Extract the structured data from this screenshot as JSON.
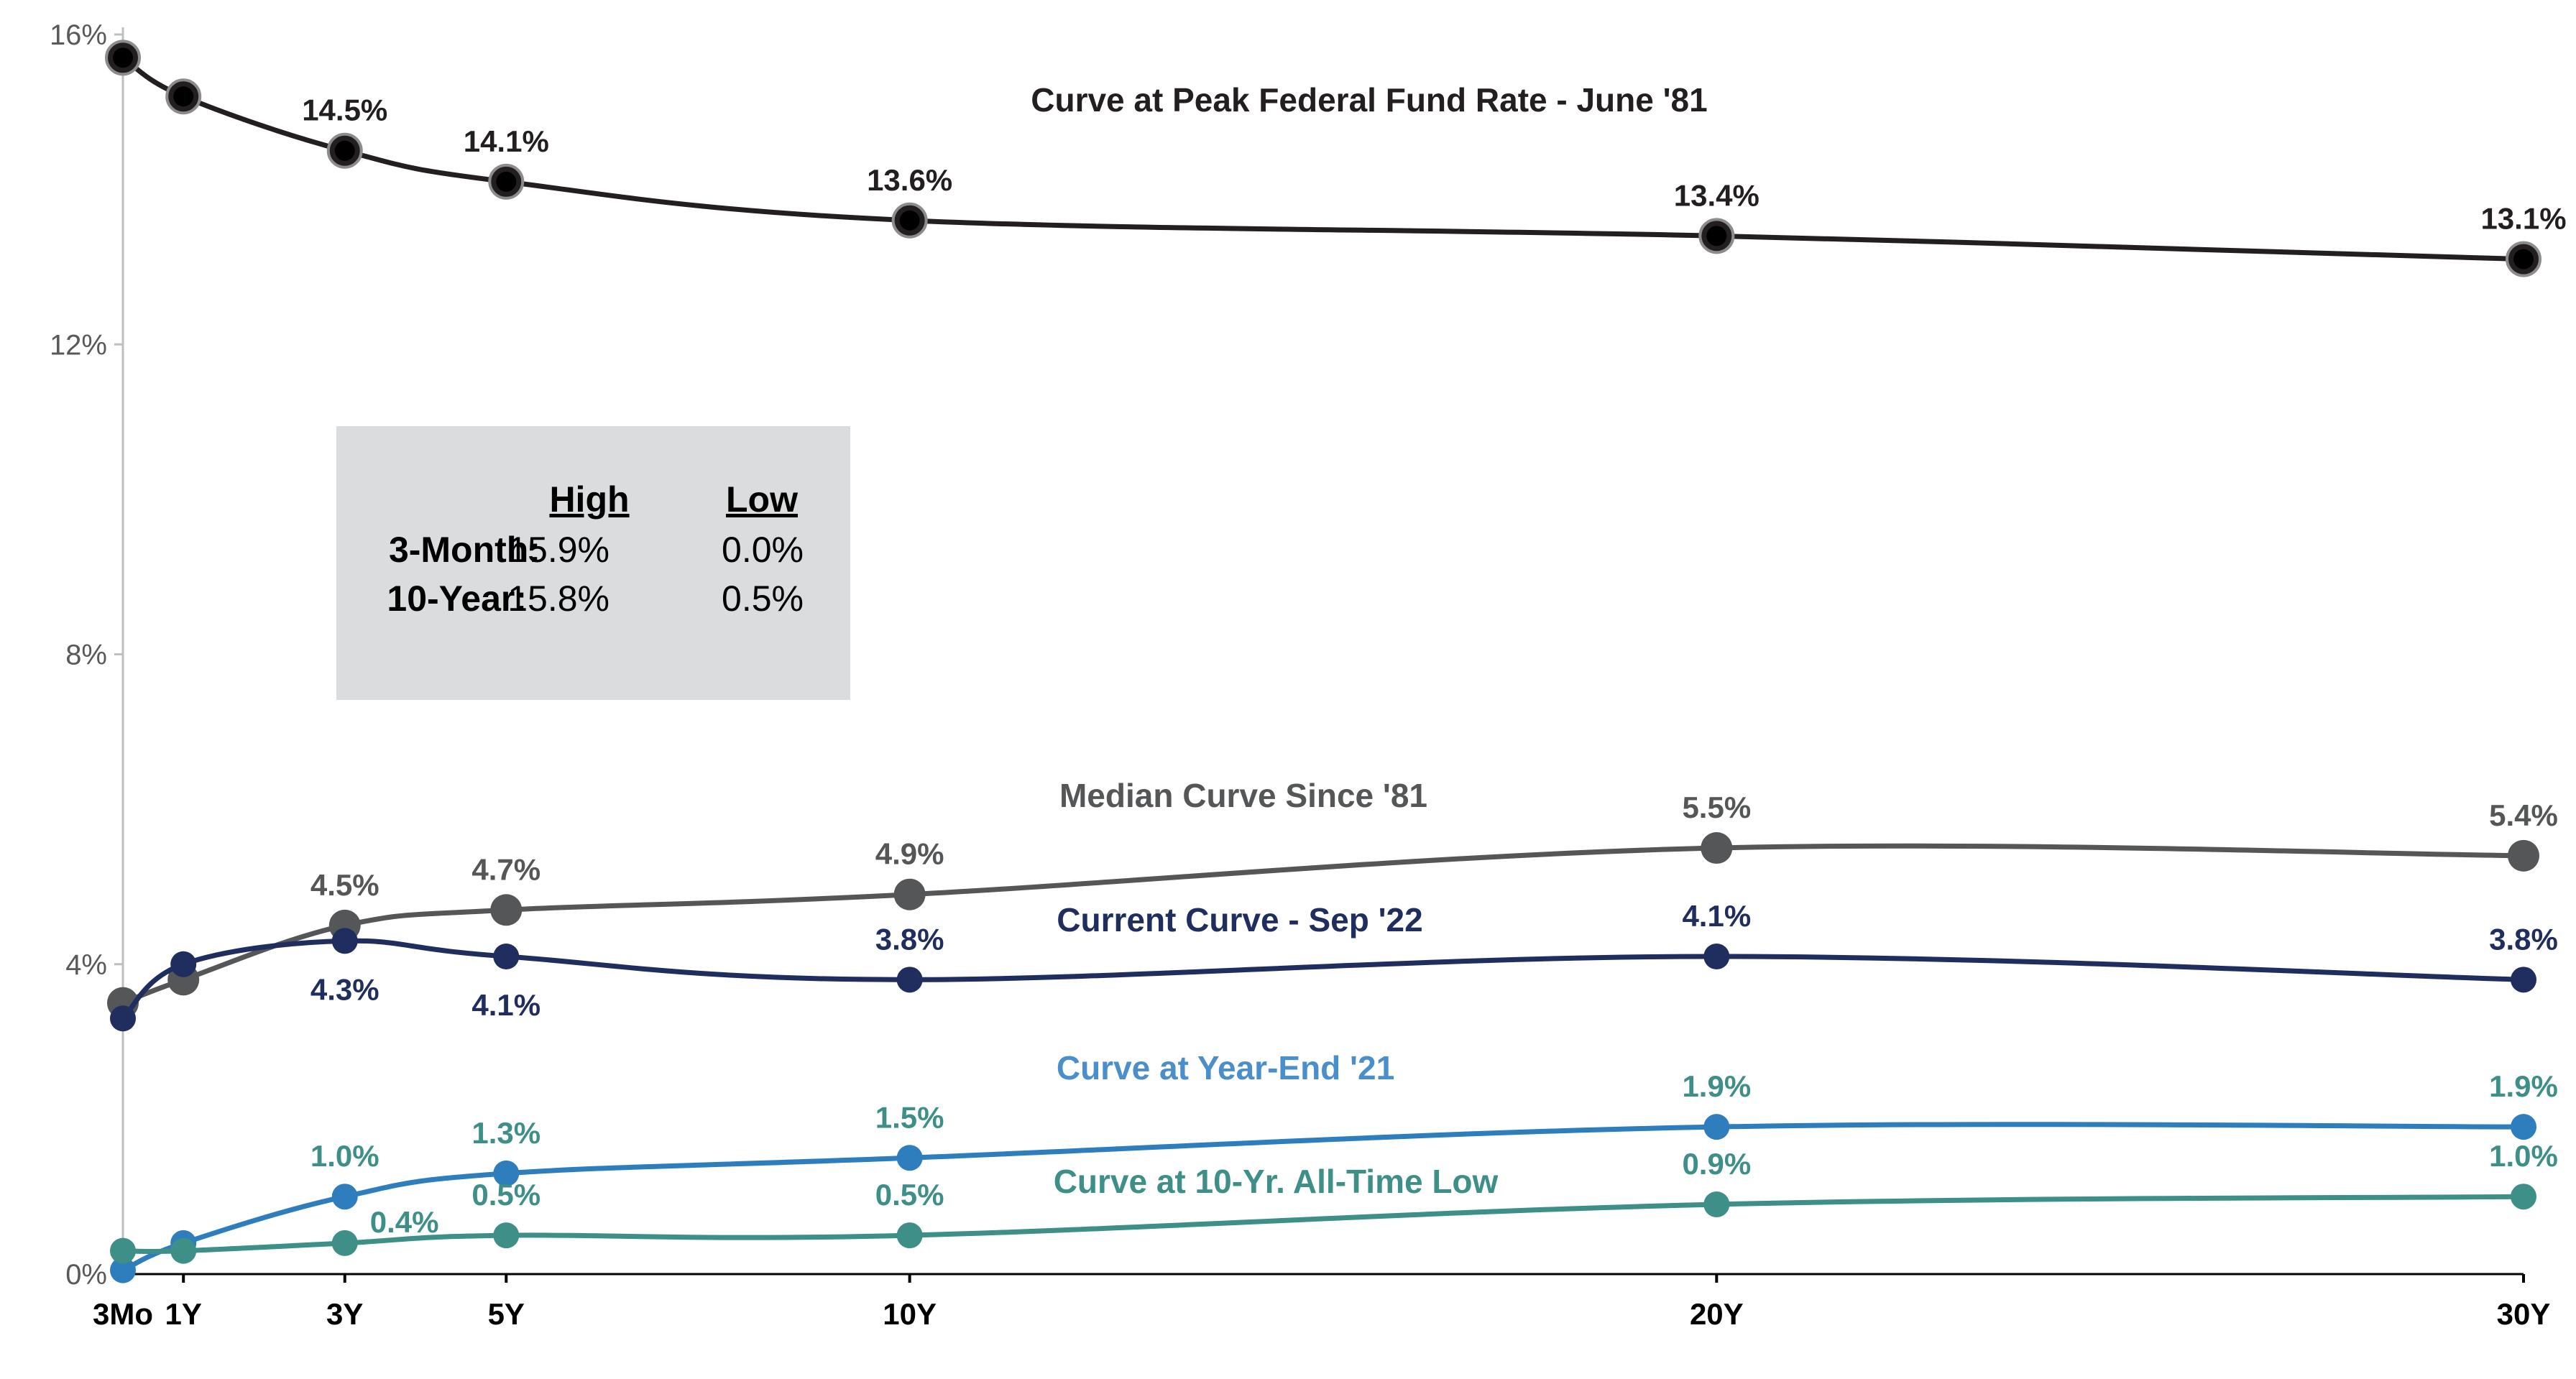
{
  "chart_data": {
    "type": "line",
    "categories": [
      "3Mo",
      "1Y",
      "3Y",
      "5Y",
      "10Y",
      "20Y",
      "30Y"
    ],
    "x": [
      0.25,
      1,
      3,
      5,
      10,
      20,
      30
    ],
    "yticks": [
      "0%",
      "4%",
      "8%",
      "12%",
      "16%"
    ],
    "ylim": [
      0,
      16
    ],
    "grid": false,
    "legend": "inline",
    "series": [
      {
        "name": "Curve at Peak Federal Fund Rate - June '81",
        "color": "#231f20",
        "values": [
          15.7,
          15.2,
          14.5,
          14.1,
          13.6,
          13.4,
          13.1
        ],
        "labels": [
          "",
          "",
          "14.5%",
          "14.1%",
          "13.6%",
          "13.4%",
          "13.1%"
        ],
        "label_pos": [
          "",
          "",
          "above",
          "above",
          "above",
          "above",
          "above"
        ]
      },
      {
        "name": "Median Curve Since '81",
        "color": "#555657",
        "values": [
          3.5,
          3.8,
          4.5,
          4.7,
          4.9,
          5.5,
          5.4
        ],
        "labels": [
          "",
          "",
          "4.5%",
          "4.7%",
          "4.9%",
          "5.5%",
          "5.4%"
        ],
        "label_pos": [
          "",
          "",
          "above",
          "above",
          "above",
          "above",
          "above"
        ]
      },
      {
        "name": "Current Curve - Sep '22",
        "color": "#1f2e5e",
        "values": [
          3.3,
          4.0,
          4.3,
          4.1,
          3.8,
          4.1,
          3.8
        ],
        "labels": [
          "",
          "",
          "4.3%",
          "4.1%",
          "3.8%",
          "4.1%",
          "3.8%"
        ],
        "label_pos": [
          "",
          "",
          "below",
          "below",
          "above",
          "above",
          "above"
        ]
      },
      {
        "name": "Curve at Year-End '21",
        "color": "#2e7ebd",
        "label_color": "#3d8f87",
        "values": [
          0.05,
          0.4,
          1.0,
          1.3,
          1.5,
          1.9,
          1.9
        ],
        "labels": [
          "",
          "",
          "1.0%",
          "1.3%",
          "1.5%",
          "1.9%",
          "1.9%"
        ],
        "label_pos": [
          "",
          "",
          "above",
          "above",
          "above",
          "above",
          "above"
        ]
      },
      {
        "name": "Curve at 10-Yr. All-Time Low",
        "color": "#3d8f87",
        "values": [
          0.3,
          0.3,
          0.4,
          0.5,
          0.5,
          0.9,
          1.0
        ],
        "labels": [
          "",
          "",
          "0.4%",
          "0.5%",
          "0.5%",
          "0.9%",
          "1.0%"
        ],
        "label_pos": [
          "",
          "",
          "right",
          "above",
          "above",
          "above",
          "above"
        ]
      }
    ],
    "stats_box": {
      "headers": [
        "High",
        "Low"
      ],
      "rows": [
        {
          "label": "3-Month:",
          "high": "15.9%",
          "low": "0.0%"
        },
        {
          "label": "10-Year:",
          "high": "15.8%",
          "low": "0.5%"
        }
      ]
    }
  }
}
